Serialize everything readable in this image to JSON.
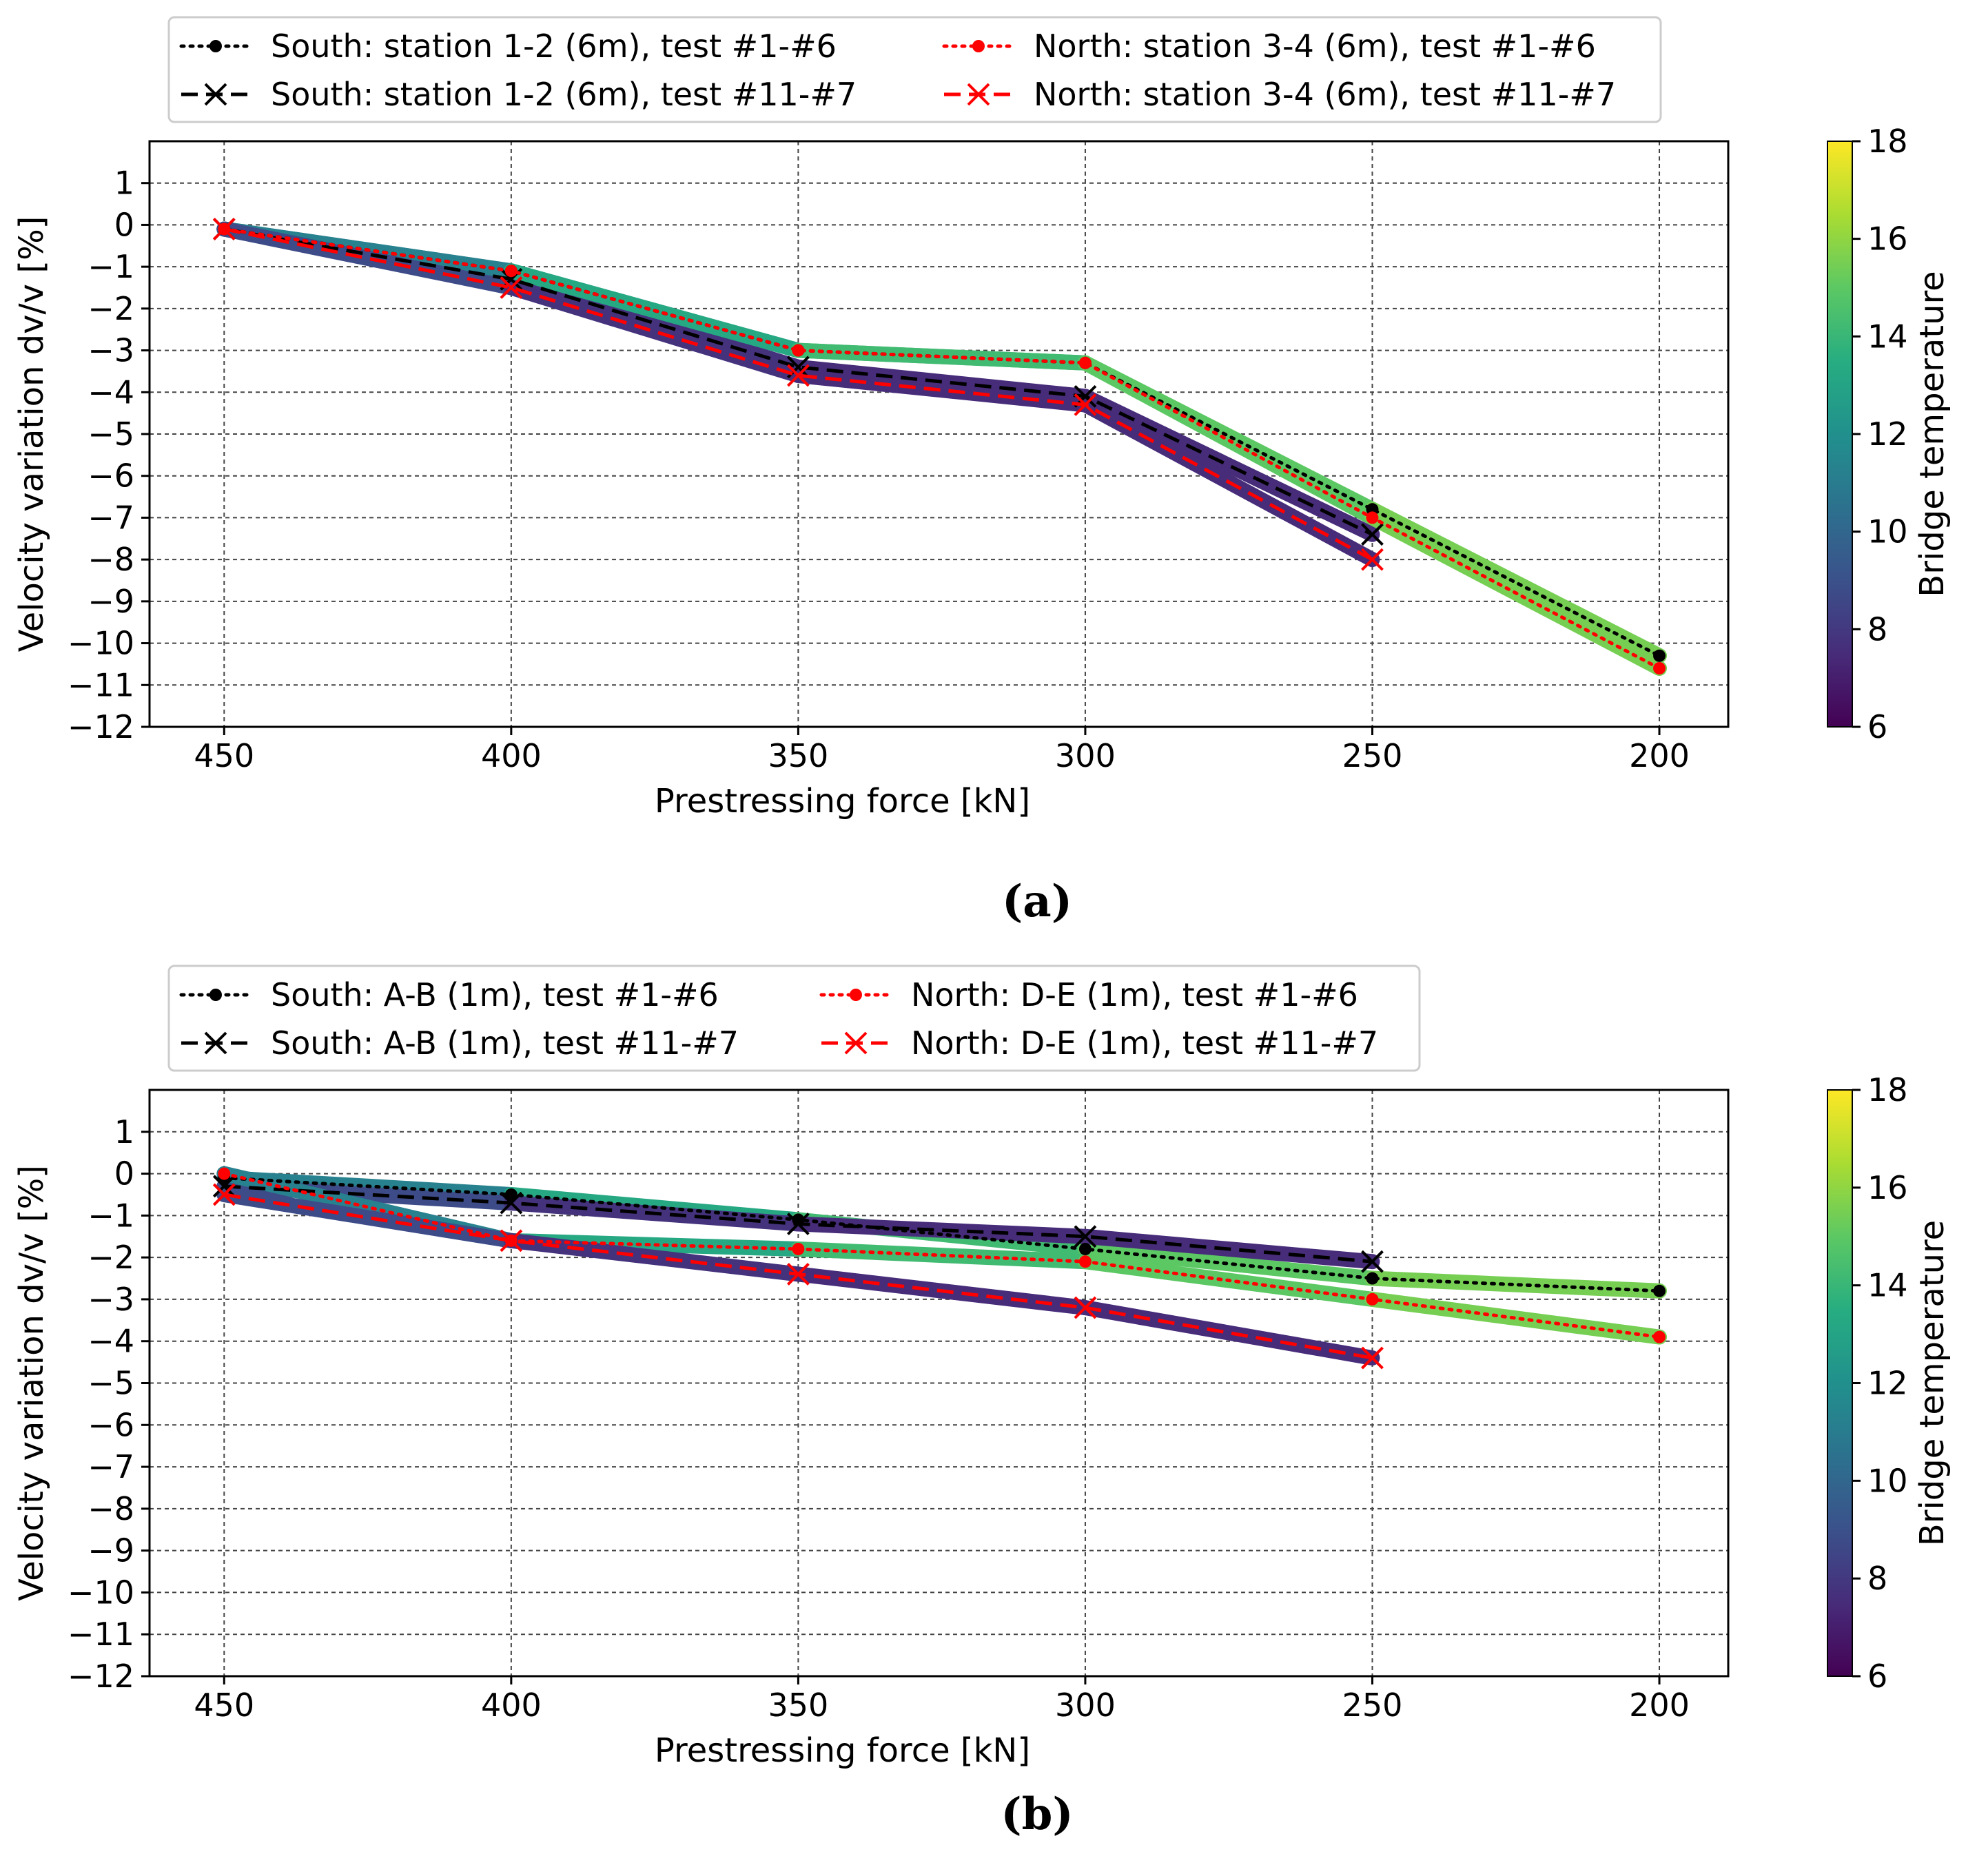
{
  "chart_data": [
    {
      "type": "line",
      "panel_label": "(a)",
      "xlabel": "Prestressing force [kN]",
      "ylabel": "Velocity variation dv/v [%]",
      "x_ticks": [
        450,
        400,
        350,
        300,
        250,
        200
      ],
      "x_tick_labels": [
        "450",
        "400",
        "350",
        "300",
        "250",
        "200"
      ],
      "xlim": [
        463,
        188
      ],
      "y_ticks": [
        1,
        0,
        -1,
        -2,
        -3,
        -4,
        -5,
        -6,
        -7,
        -8,
        -9,
        -10,
        -11,
        -12
      ],
      "y_tick_labels": [
        "1",
        "0",
        "−1",
        "−2",
        "−3",
        "−4",
        "−5",
        "−6",
        "−7",
        "−8",
        "−9",
        "−10",
        "−11",
        "−12"
      ],
      "ylim": [
        -12,
        2
      ],
      "grid": true,
      "legend_position": "top",
      "colorbar": {
        "label": "Bridge temperature",
        "range": [
          6,
          18
        ],
        "ticks": [
          6,
          8,
          10,
          12,
          14,
          16,
          18
        ],
        "tick_labels": [
          "6",
          "8",
          "10",
          "12",
          "14",
          "16",
          "18"
        ]
      },
      "series": [
        {
          "name": "South: station 1-2 (6m), test #1-#6",
          "color": "#000000",
          "line_style": "dotted",
          "marker": "dot",
          "x": [
            450,
            400,
            350,
            300,
            250,
            200
          ],
          "y": [
            -0.1,
            -1.1,
            -3.0,
            -3.3,
            -6.8,
            -10.3
          ],
          "temps": [
            10.0,
            12.5,
            14.0,
            14.5,
            15.5,
            15.5
          ]
        },
        {
          "name": "South: station 1-2 (6m), test #11-#7",
          "color": "#000000",
          "line_style": "dashed",
          "marker": "x",
          "x": [
            450,
            400,
            350,
            300,
            250
          ],
          "y": [
            -0.1,
            -1.3,
            -3.4,
            -4.1,
            -7.4
          ],
          "temps": [
            9.5,
            8.0,
            7.5,
            7.5,
            7.5
          ]
        },
        {
          "name": "North: station 3-4 (6m), test #1-#6",
          "color": "#ff0000",
          "line_style": "dotted",
          "marker": "dot",
          "x": [
            450,
            400,
            350,
            300,
            250,
            200
          ],
          "y": [
            -0.1,
            -1.1,
            -3.0,
            -3.3,
            -7.0,
            -10.6
          ],
          "temps": [
            10.0,
            12.5,
            14.0,
            14.5,
            15.5,
            15.5
          ]
        },
        {
          "name": "North: station 3-4 (6m), test #11-#7",
          "color": "#ff0000",
          "line_style": "dashed",
          "marker": "x",
          "x": [
            450,
            400,
            350,
            300,
            250
          ],
          "y": [
            -0.1,
            -1.5,
            -3.6,
            -4.3,
            -8.0
          ],
          "temps": [
            9.5,
            8.0,
            7.5,
            7.5,
            7.5
          ]
        }
      ]
    },
    {
      "type": "line",
      "panel_label": "(b)",
      "xlabel": "Prestressing force [kN]",
      "ylabel": "Velocity variation dv/v [%]",
      "x_ticks": [
        450,
        400,
        350,
        300,
        250,
        200
      ],
      "x_tick_labels": [
        "450",
        "400",
        "350",
        "300",
        "250",
        "200"
      ],
      "xlim": [
        463,
        188
      ],
      "y_ticks": [
        1,
        0,
        -1,
        -2,
        -3,
        -4,
        -5,
        -6,
        -7,
        -8,
        -9,
        -10,
        -11,
        -12
      ],
      "y_tick_labels": [
        "1",
        "0",
        "−1",
        "−2",
        "−3",
        "−4",
        "−5",
        "−6",
        "−7",
        "−8",
        "−9",
        "−10",
        "−11",
        "−12"
      ],
      "ylim": [
        -12,
        2
      ],
      "grid": true,
      "legend_position": "top",
      "colorbar": {
        "label": "Bridge temperature",
        "range": [
          6,
          18
        ],
        "ticks": [
          6,
          8,
          10,
          12,
          14,
          16,
          18
        ],
        "tick_labels": [
          "6",
          "8",
          "10",
          "12",
          "14",
          "16",
          "18"
        ]
      },
      "series": [
        {
          "name": "South: A-B (1m), test #1-#6",
          "color": "#000000",
          "line_style": "dotted",
          "marker": "dot",
          "x": [
            450,
            400,
            350,
            300,
            250,
            200
          ],
          "y": [
            -0.1,
            -0.5,
            -1.1,
            -1.8,
            -2.5,
            -2.8
          ],
          "temps": [
            10.0,
            12.5,
            14.0,
            14.5,
            15.5,
            15.5
          ]
        },
        {
          "name": "South: A-B (1m), test #11-#7",
          "color": "#000000",
          "line_style": "dashed",
          "marker": "x",
          "x": [
            450,
            400,
            350,
            300,
            250
          ],
          "y": [
            -0.3,
            -0.7,
            -1.2,
            -1.5,
            -2.1
          ],
          "temps": [
            9.5,
            8.0,
            7.5,
            7.5,
            7.5
          ]
        },
        {
          "name": "North: D-E (1m), test #1-#6",
          "color": "#ff0000",
          "line_style": "dotted",
          "marker": "dot",
          "x": [
            450,
            400,
            350,
            300,
            250,
            200
          ],
          "y": [
            0.0,
            -1.6,
            -1.8,
            -2.1,
            -3.0,
            -3.9
          ],
          "temps": [
            10.0,
            12.5,
            14.0,
            14.5,
            15.5,
            15.5
          ]
        },
        {
          "name": "North: D-E (1m), test #11-#7",
          "color": "#ff0000",
          "line_style": "dashed",
          "marker": "x",
          "x": [
            450,
            400,
            350,
            300,
            250
          ],
          "y": [
            -0.5,
            -1.6,
            -2.4,
            -3.2,
            -4.4
          ],
          "temps": [
            9.5,
            8.0,
            7.5,
            7.5,
            7.5
          ]
        }
      ]
    }
  ]
}
